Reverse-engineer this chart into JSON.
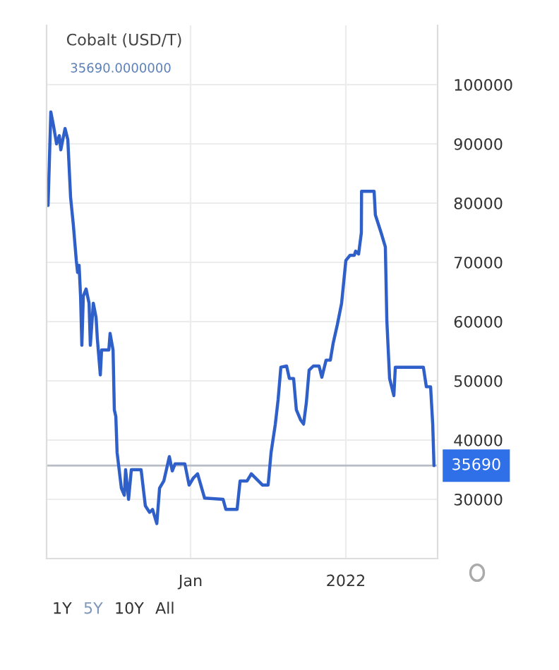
{
  "chart_data": {
    "type": "line",
    "title": "Cobalt (USD/T)",
    "subtitle": "35690.0000000",
    "x": [
      "2018-02-22",
      "2018-03-01",
      "2018-03-14",
      "2018-03-27",
      "2018-04-10",
      "2018-04-23",
      "2018-04-30",
      "2018-05-20",
      "2018-06-02",
      "2018-06-15",
      "2018-06-28",
      "2018-07-12",
      "2018-07-18",
      "2018-07-25",
      "2018-08-01",
      "2018-08-07",
      "2018-08-14",
      "2018-08-27",
      "2018-09-10",
      "2018-09-16",
      "2018-09-30",
      "2018-10-13",
      "2018-10-19",
      "2018-11-02",
      "2018-11-08",
      "2018-12-12",
      "2018-12-18",
      "2019-01-01",
      "2019-01-07",
      "2019-01-14",
      "2019-01-20",
      "2019-02-09",
      "2019-02-23",
      "2019-03-01",
      "2019-03-15",
      "2019-03-28",
      "2019-05-13",
      "2019-06-02",
      "2019-06-22",
      "2019-07-06",
      "2019-07-26",
      "2019-08-08",
      "2019-08-28",
      "2019-09-23",
      "2019-10-07",
      "2019-10-20",
      "2019-12-05",
      "2019-12-25",
      "2020-01-14",
      "2020-02-03",
      "2020-03-07",
      "2020-06-02",
      "2020-06-15",
      "2020-08-07",
      "2020-08-21",
      "2020-09-23",
      "2020-10-13",
      "2020-12-05",
      "2020-12-31",
      "2021-01-14",
      "2021-02-03",
      "2021-02-16",
      "2021-03-01",
      "2021-03-28",
      "2021-04-10",
      "2021-04-30",
      "2021-05-13",
      "2021-06-02",
      "2021-06-16",
      "2021-06-29",
      "2021-07-12",
      "2021-08-01",
      "2021-08-28",
      "2021-09-10",
      "2021-09-30",
      "2021-10-20",
      "2021-11-02",
      "2021-11-22",
      "2021-12-12",
      "2022-01-01",
      "2022-01-21",
      "2022-02-10",
      "2022-02-16",
      "2022-03-02",
      "2022-03-15",
      "2022-03-16",
      "2022-05-14",
      "2022-05-20",
      "2022-06-16",
      "2022-07-06",
      "2022-07-13",
      "2022-07-26",
      "2022-08-15",
      "2022-08-22",
      "2023-01-01",
      "2023-01-15",
      "2023-02-04",
      "2023-02-14",
      "2023-02-20"
    ],
    "series": [
      {
        "color": "#2f5fc8",
        "values": [
          82700,
          79600,
          95400,
          93000,
          90000,
          91400,
          89000,
          92600,
          90700,
          81000,
          76300,
          70300,
          68300,
          69500,
          64300,
          56000,
          64300,
          65500,
          63100,
          56000,
          63100,
          60700,
          57100,
          51000,
          55200,
          55200,
          58000,
          55200,
          45100,
          44000,
          37900,
          31900,
          30700,
          35000,
          30000,
          35000,
          35000,
          28900,
          27800,
          28300,
          25900,
          31900,
          33100,
          37200,
          34800,
          36000,
          36000,
          32400,
          33600,
          34300,
          30200,
          30000,
          28300,
          28300,
          33100,
          33100,
          34300,
          32400,
          32400,
          37900,
          42700,
          46800,
          52300,
          52500,
          50400,
          50400,
          45100,
          43400,
          42700,
          46300,
          51800,
          52500,
          52500,
          50600,
          53500,
          53500,
          56300,
          59500,
          63100,
          70300,
          71200,
          71200,
          71900,
          71400,
          75000,
          82000,
          82000,
          78000,
          75000,
          72600,
          60200,
          50400,
          47500,
          52300,
          52300,
          49000,
          49000,
          42700,
          35690
        ]
      }
    ],
    "xlim": [
      "2018-02-22",
      "2023-03-09"
    ],
    "xticks": [
      {
        "value": "2020-01-01",
        "label": "Jan"
      },
      {
        "value": "2022-01-01",
        "label": "2022"
      }
    ],
    "ylim": [
      20000,
      110000
    ],
    "yticks": [
      30000,
      40000,
      50000,
      60000,
      70000,
      80000,
      90000,
      100000
    ],
    "ref_lines": [
      {
        "axis": "y",
        "value": 35690,
        "label": "35690",
        "color": "#b8bcc4"
      }
    ],
    "grid": true,
    "legend": false,
    "annotations": [
      "1Y",
      "5Y",
      "10Y",
      "All"
    ]
  }
}
